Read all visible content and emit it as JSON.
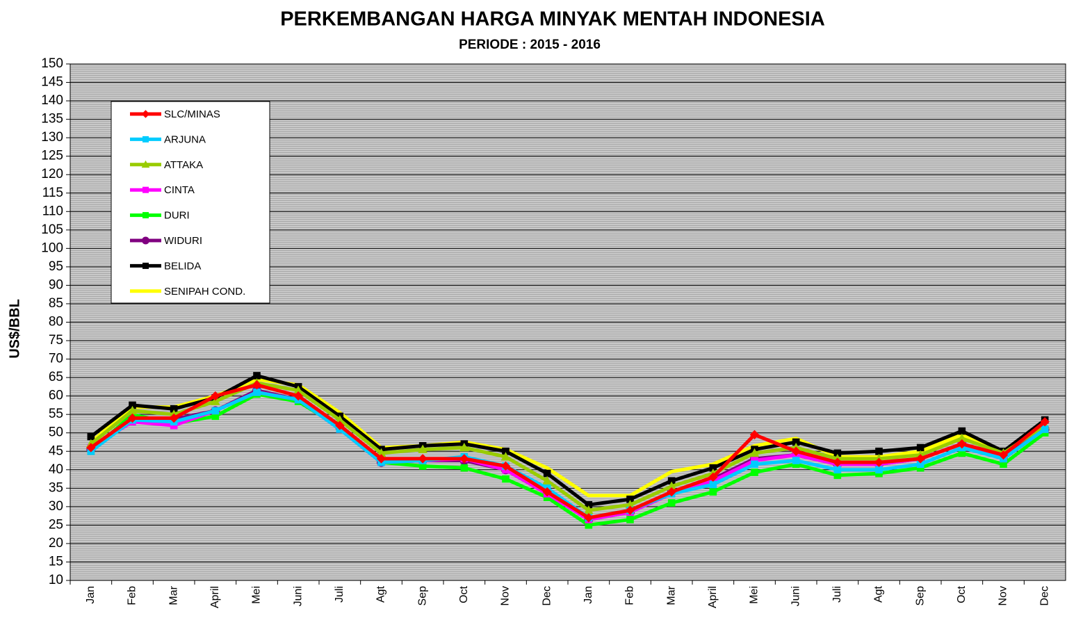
{
  "chart_data": {
    "type": "line",
    "title": "PERKEMBANGAN HARGA MINYAK MENTAH INDONESIA",
    "subtitle": "PERIODE : 2015 - 2016",
    "y_label": "US$/BBL",
    "categories": [
      "Jan",
      "Feb",
      "Mar",
      "April",
      "Mei",
      "Juni",
      "Juli",
      "Agt",
      "Sep",
      "Oct",
      "Nov",
      "Dec",
      "Jan",
      "Feb",
      "Mar",
      "April",
      "Mei",
      "Juni",
      "Juli",
      "Agt",
      "Sep",
      "Oct",
      "Nov",
      "Dec"
    ],
    "ylim": [
      10,
      150
    ],
    "yticks": [
      10,
      15,
      20,
      25,
      30,
      35,
      40,
      45,
      50,
      55,
      60,
      65,
      70,
      75,
      80,
      85,
      90,
      95,
      100,
      105,
      110,
      115,
      120,
      125,
      130,
      135,
      140,
      145,
      150
    ],
    "grid": true,
    "legend": "upper left",
    "series": [
      {
        "name": "SLC/MINAS",
        "color": "#ff0000",
        "marker": "diamond",
        "values": [
          46,
          54,
          54,
          60,
          63,
          60,
          52,
          43,
          43,
          43,
          41,
          34,
          27,
          29,
          34,
          38,
          49.5,
          45,
          42,
          42,
          43,
          47,
          44,
          53
        ]
      },
      {
        "name": "ARJUNA",
        "color": "#00ccff",
        "marker": "square",
        "values": [
          45,
          53.5,
          53,
          56,
          61,
          59,
          51,
          42,
          42.5,
          43.5,
          41,
          35,
          27,
          29,
          33.5,
          36,
          41.5,
          42.5,
          40,
          40,
          41.5,
          46,
          43,
          51
        ]
      },
      {
        "name": "ATTAKA",
        "color": "#99cc00",
        "marker": "triangle",
        "values": [
          47,
          56,
          55,
          58.5,
          63.5,
          61.5,
          53.5,
          44.5,
          45.5,
          46,
          43.5,
          37,
          29,
          30.5,
          35.5,
          39,
          44.5,
          46,
          43,
          43,
          44,
          48.5,
          44.5,
          52
        ]
      },
      {
        "name": "CINTA",
        "color": "#ff00ff",
        "marker": "square",
        "values": [
          46,
          53,
          52,
          56,
          61,
          59,
          51,
          42,
          42.5,
          43,
          40,
          33.5,
          26.5,
          28.5,
          33.5,
          37,
          42.5,
          44,
          41.5,
          41.5,
          43,
          47,
          43,
          51
        ]
      },
      {
        "name": "DURI",
        "color": "#00ff00",
        "marker": "square",
        "values": [
          45,
          55,
          52.5,
          54.5,
          60.5,
          58.5,
          51.5,
          42,
          41,
          40.5,
          37.5,
          32.5,
          25,
          26.5,
          31,
          34,
          39.3,
          41.5,
          38.5,
          39,
          40.5,
          44.5,
          41.5,
          50
        ]
      },
      {
        "name": "WIDURI",
        "color": "#800080",
        "marker": "circle",
        "values": [
          45.5,
          53.7,
          53.7,
          56,
          61.5,
          59,
          51.5,
          42,
          42.5,
          42.5,
          40,
          33.5,
          26.5,
          28.5,
          34,
          37.5,
          43,
          44,
          41.5,
          41.5,
          43,
          47,
          43.5,
          51
        ]
      },
      {
        "name": "BELIDA",
        "color": "#000000",
        "marker": "square",
        "values": [
          49,
          57.5,
          56.5,
          59.5,
          65.5,
          62.5,
          54.5,
          45.5,
          46.5,
          47,
          45,
          39,
          30.5,
          32,
          37,
          40.5,
          45.5,
          47.5,
          44.5,
          45,
          46,
          50.5,
          45,
          53.5
        ]
      },
      {
        "name": "SENIPAH COND.",
        "color": "#ffff00",
        "marker": "none",
        "values": [
          47.5,
          57,
          57,
          60,
          64.5,
          63,
          55.5,
          46,
          46.5,
          47.5,
          45.5,
          40.5,
          33,
          33,
          39.5,
          41.5,
          46.5,
          48.5,
          43.5,
          43.5,
          45,
          49.5,
          45,
          52.5
        ]
      }
    ]
  }
}
